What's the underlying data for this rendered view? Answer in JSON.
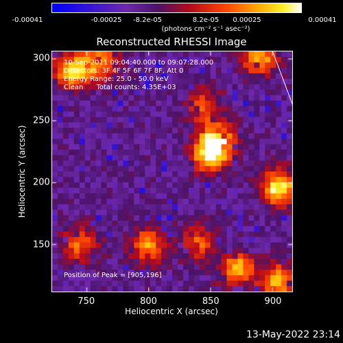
{
  "colorbar": {
    "ticks": [
      "-0.00041",
      "-0.00025",
      "-8.2e-05",
      "8.2e-05",
      "0.00025",
      "0.00041"
    ],
    "unit": "(photons cm⁻² s⁻¹ asec⁻²)"
  },
  "chart_data": {
    "type": "heatmap",
    "title": "Reconstructed RHESSI Image",
    "xlabel": "Heliocentric X (arcsec)",
    "ylabel": "Heliocentric Y (arcsec)",
    "xlim": [
      722,
      916
    ],
    "ylim": [
      112,
      306
    ],
    "xticks": [
      "750",
      "800",
      "850",
      "900"
    ],
    "yticks": [
      "150",
      "200",
      "250",
      "300"
    ],
    "annotations": [
      "10-Sep-2011 09:04:40.000 to 09:07:28.000",
      "Detectors: 3F 4F 5F 6F 7F 8F, Att 0",
      "Energy Range: 25.0 - 50.0 keV",
      "Clean      Total counts: 4.35E+03"
    ],
    "peak_label": "Position of Peak = [905,196]",
    "sources": [
      {
        "x": 850,
        "y": 222,
        "strength": 0.95
      },
      {
        "x": 905,
        "y": 196,
        "strength": 1.0
      },
      {
        "x": 855,
        "y": 235,
        "strength": 0.8
      },
      {
        "x": 738,
        "y": 290,
        "strength": 0.85
      },
      {
        "x": 760,
        "y": 298,
        "strength": 0.7
      },
      {
        "x": 890,
        "y": 300,
        "strength": 0.75
      },
      {
        "x": 845,
        "y": 262,
        "strength": 0.5
      },
      {
        "x": 800,
        "y": 150,
        "strength": 0.7
      },
      {
        "x": 745,
        "y": 150,
        "strength": 0.6
      },
      {
        "x": 872,
        "y": 130,
        "strength": 0.8
      },
      {
        "x": 840,
        "y": 150,
        "strength": 0.55
      },
      {
        "x": 905,
        "y": 120,
        "strength": 0.8
      }
    ]
  },
  "footer": {
    "date": "13-May-2022 23:14"
  }
}
